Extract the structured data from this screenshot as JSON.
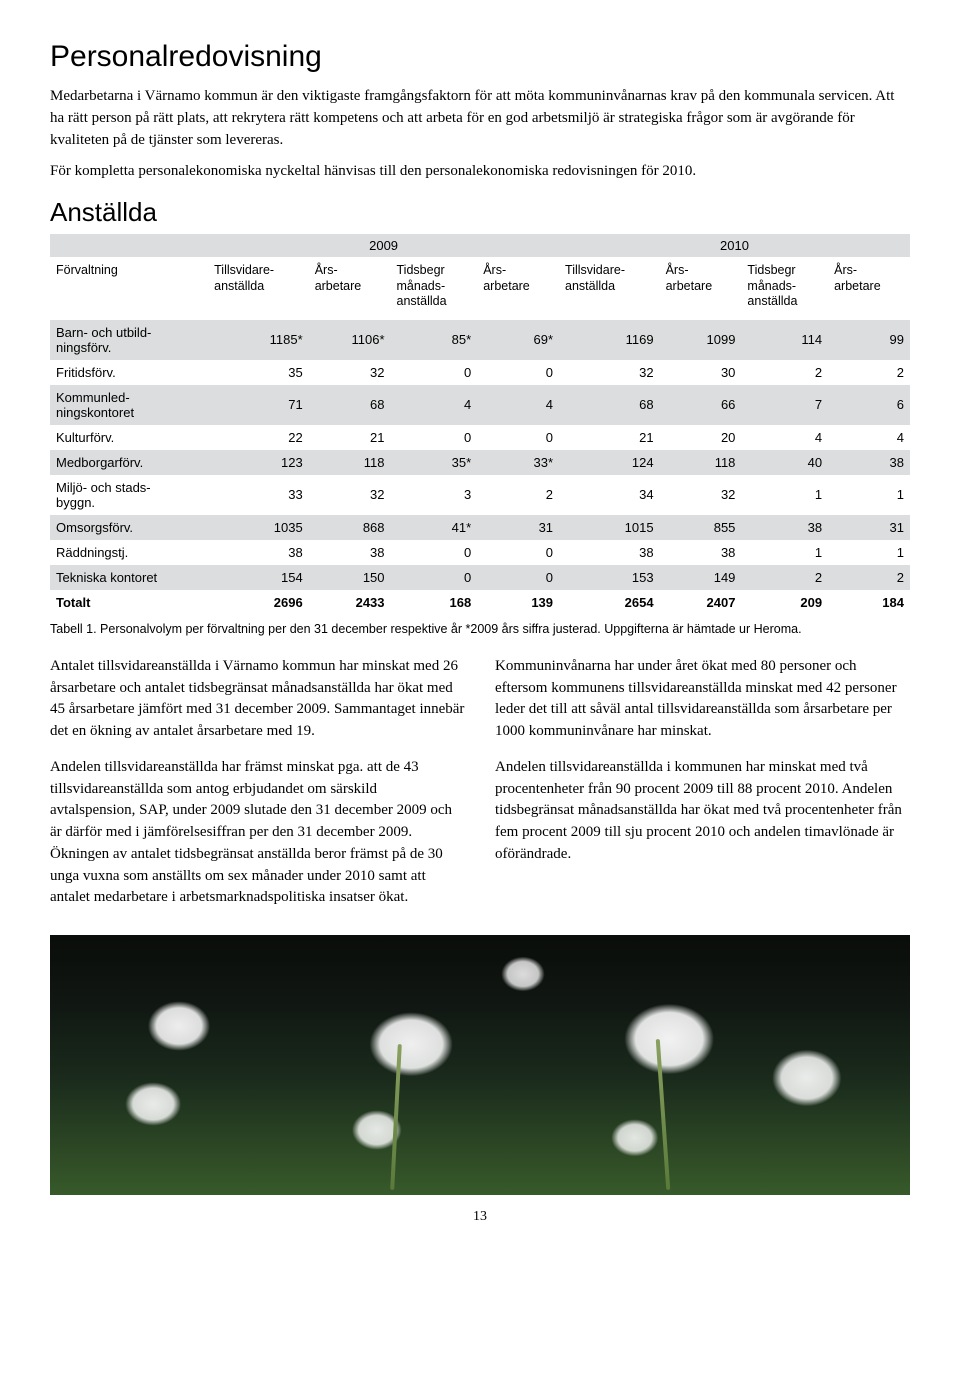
{
  "title": "Personalredovisning",
  "intro_p1": "Medarbetarna i Värnamo kommun är den viktigaste framgångsfaktorn för att möta kommuninvånarnas krav på den kommunala servicen. Att ha rätt person på rätt plats, att rekrytera rätt kompetens och att arbeta för en god arbetsmiljö är strategiska frågor som är avgörande för kvaliteten på de tjänster som levereras.",
  "intro_p2": "För kompletta personalekonomiska nyckeltal hänvisas till den personalekonomiska redovisningen för 2010.",
  "section_heading": "Anställda",
  "table": {
    "type": "table",
    "year_headers": [
      "2009",
      "2010"
    ],
    "columns": [
      "Förvaltning",
      "Tillsvidare-\nanställda",
      "Års-\narbetare",
      "Tidsbegr\nmånads-\nanställda",
      "Års-\narbetare",
      "Tillsvidare-\nanställda",
      "Års-\narbetare",
      "Tidsbegr\nmånads-\nanställda",
      "Års-\narbetare"
    ],
    "rows": [
      [
        "Barn- och utbild-\nningsförv.",
        "1185*",
        "1106*",
        "85*",
        "69*",
        "1169",
        "1099",
        "114",
        "99"
      ],
      [
        "Fritidsförv.",
        "35",
        "32",
        "0",
        "0",
        "32",
        "30",
        "2",
        "2"
      ],
      [
        "Kommunled-\nningskontoret",
        "71",
        "68",
        "4",
        "4",
        "68",
        "66",
        "7",
        "6"
      ],
      [
        "Kulturförv.",
        "22",
        "21",
        "0",
        "0",
        "21",
        "20",
        "4",
        "4"
      ],
      [
        "Medborgarförv.",
        "123",
        "118",
        "35*",
        "33*",
        "124",
        "118",
        "40",
        "38"
      ],
      [
        "Miljö- och stads-\nbyggn.",
        "33",
        "32",
        "3",
        "2",
        "34",
        "32",
        "1",
        "1"
      ],
      [
        "Omsorgsförv.",
        "1035",
        "868",
        "41*",
        "31",
        "1015",
        "855",
        "38",
        "31"
      ],
      [
        "Räddningstj.",
        "38",
        "38",
        "0",
        "0",
        "38",
        "38",
        "1",
        "1"
      ],
      [
        "Tekniska kontoret",
        "154",
        "150",
        "0",
        "0",
        "153",
        "149",
        "2",
        "2"
      ],
      [
        "Totalt",
        "2696",
        "2433",
        "168",
        "139",
        "2654",
        "2407",
        "209",
        "184"
      ]
    ],
    "alt_row_bg": "#dcddde",
    "header_bg": "#dcddde",
    "font_size": 13
  },
  "caption": "Tabell 1. Personalvolym per förvaltning per den 31 december respektive år *2009 års siffra justerad. Uppgifterna är hämtade ur Heroma.",
  "left_col": {
    "p1": "Antalet tillsvidareanställda i Värnamo kommun har minskat med 26 årsarbetare och antalet tidsbegränsat månadsanställda har ökat med 45 årsarbetare jämfört med 31 december 2009. Sammantaget innebär det en ökning av antalet årsarbetare med 19.",
    "p2": "Andelen tillsvidareanställda har främst minskat pga. att de 43 tillsvidareanställda som antog erbjudandet om särskild avtalspension, SAP, under 2009 slutade den 31 december 2009 och är därför med i jämförelsesiffran per den 31 december 2009. Ökningen av antalet tidsbegränsat anställda beror främst på de 30 unga vuxna som anställts om sex månader under 2010 samt att antalet medarbetare i arbetsmarknadspolitiska insatser ökat."
  },
  "right_col": {
    "p1": "Kommuninvånarna har under året ökat med 80 personer och eftersom kommunens tillsvidareanställda minskat med 42 personer leder det till att såväl antal tillsvidareanställda som årsarbetare per 1000 kommuninvånare har minskat.",
    "p2": "Andelen tillsvidareanställda i kommunen har minskat med två procentenheter från 90 procent 2009 till 88 procent 2010. Andelen tidsbegränsat månadsanställda har ökat med två procentenheter från fem procent 2009 till sju procent 2010 och andelen timavlönade är oförändrade."
  },
  "page_number": "13"
}
